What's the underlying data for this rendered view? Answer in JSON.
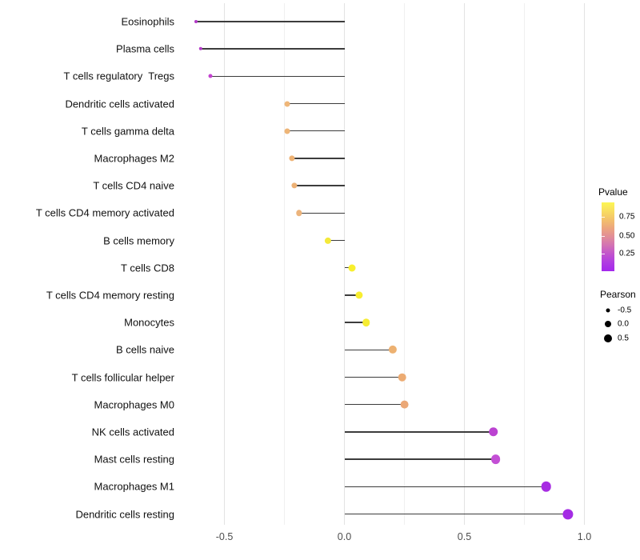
{
  "chart_data": {
    "type": "scatter",
    "variant": "lollipop",
    "title": "",
    "xlabel": "",
    "ylabel": "",
    "xlim": [
      -0.7,
      1.07
    ],
    "x_ticks": [
      {
        "value": -0.5,
        "label": "-0.5"
      },
      {
        "value": 0.0,
        "label": "0.0"
      },
      {
        "value": 0.5,
        "label": "0.5"
      },
      {
        "value": 1.0,
        "label": "1.0"
      }
    ],
    "grid": {
      "major": [
        -0.5,
        0.0,
        0.5,
        1.0
      ],
      "minor": [
        -0.25,
        0.25,
        0.75
      ]
    },
    "stem_color": "#3c3c3c",
    "points": [
      {
        "label": "Eosinophils",
        "pearson": -0.62,
        "color": "#b138c6",
        "size": 4.0
      },
      {
        "label": "Plasma cells",
        "pearson": -0.6,
        "color": "#b43cc9",
        "size": 4.4
      },
      {
        "label": "T cells regulatory  Tregs",
        "pearson": -0.56,
        "color": "#c342cf",
        "size": 5.0
      },
      {
        "label": "Dendritic cells activated",
        "pearson": -0.24,
        "color": "#efb678",
        "size": 7.0
      },
      {
        "label": "T cells gamma delta",
        "pearson": -0.24,
        "color": "#eeb577",
        "size": 7.0
      },
      {
        "label": "Macrophages M2",
        "pearson": -0.22,
        "color": "#eeb274",
        "size": 7.2
      },
      {
        "label": "T cells CD4 naive",
        "pearson": -0.21,
        "color": "#edb175",
        "size": 7.2
      },
      {
        "label": "T cells CD4 memory activated",
        "pearson": -0.19,
        "color": "#ecb47c",
        "size": 7.4
      },
      {
        "label": "B cells memory",
        "pearson": -0.07,
        "color": "#f4e93a",
        "size": 8.2
      },
      {
        "label": "T cells CD8",
        "pearson": 0.03,
        "color": "#f8ef2d",
        "size": 9.0
      },
      {
        "label": "T cells CD4 memory resting",
        "pearson": 0.06,
        "color": "#f8ee30",
        "size": 9.2
      },
      {
        "label": "Monocytes",
        "pearson": 0.09,
        "color": "#f6ec33",
        "size": 9.6
      },
      {
        "label": "B cells naive",
        "pearson": 0.2,
        "color": "#edb171",
        "size": 10.2
      },
      {
        "label": "T cells follicular helper",
        "pearson": 0.24,
        "color": "#ecab72",
        "size": 10.6
      },
      {
        "label": "Macrophages M0",
        "pearson": 0.25,
        "color": "#eba877",
        "size": 10.8
      },
      {
        "label": "NK cells activated",
        "pearson": 0.62,
        "color": "#bb43d1",
        "size": 11.6
      },
      {
        "label": "Mast cells resting",
        "pearson": 0.63,
        "color": "#c34fd5",
        "size": 11.8
      },
      {
        "label": "Macrophages M1",
        "pearson": 0.84,
        "color": "#a72ce2",
        "size": 12.6
      },
      {
        "label": "Dendritic cells resting",
        "pearson": 0.93,
        "color": "#a42ce4",
        "size": 13.2
      }
    ],
    "legend_pvalue": {
      "title": "Pvalue",
      "tick_labels": [
        "0.75",
        "0.50",
        "0.25"
      ],
      "gradient_top_to_bottom": [
        "#fcf653",
        "#f8dd60",
        "#f3c16b",
        "#eca57e",
        "#e18d98",
        "#d272b4",
        "#c153cd",
        "#b03ce2",
        "#a428ec"
      ]
    },
    "legend_pearson": {
      "title": "Pearson",
      "entries": [
        {
          "label": "-0.5",
          "diameter": 5
        },
        {
          "label": "0.0",
          "diameter": 8
        },
        {
          "label": "0.5",
          "diameter": 10
        }
      ]
    }
  }
}
